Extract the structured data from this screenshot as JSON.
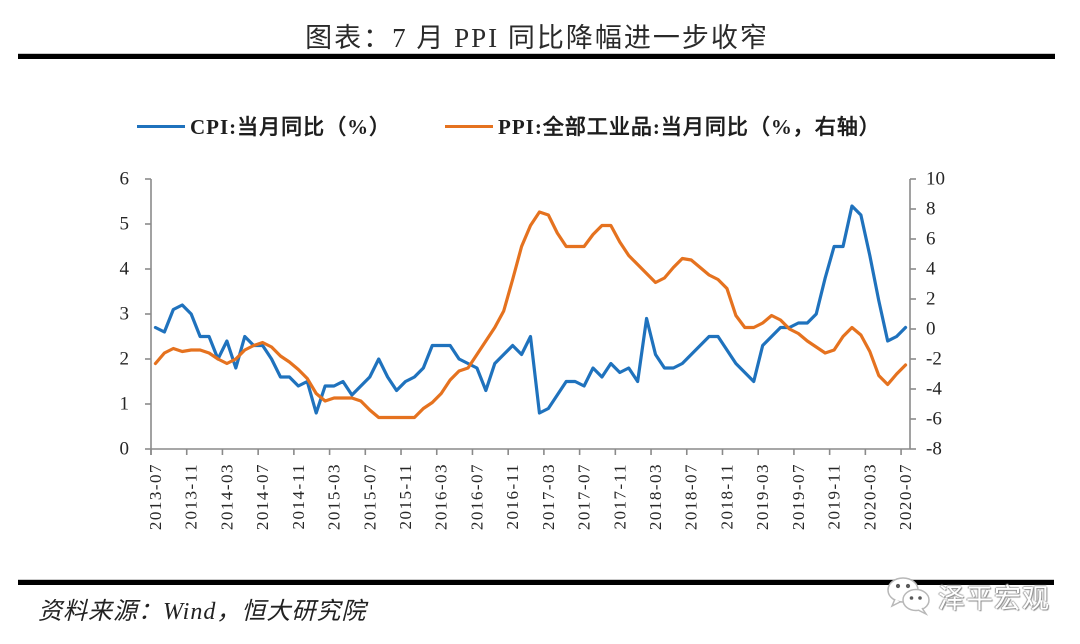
{
  "title": "图表：7 月 PPI 同比降幅进一步收窄",
  "source": "资料来源：Wind，恒大研究院",
  "watermark": {
    "icon": "wechat-icon",
    "text": "泽平宏观"
  },
  "chart_data": {
    "type": "line",
    "title": "图表：7 月 PPI 同比降幅进一步收窄",
    "xlabel": "",
    "ylabel_left": "",
    "ylabel_right": "",
    "legend": "top",
    "grid": false,
    "x": [
      "2013-07",
      "2013-08",
      "2013-09",
      "2013-10",
      "2013-11",
      "2013-12",
      "2014-01",
      "2014-02",
      "2014-03",
      "2014-04",
      "2014-05",
      "2014-06",
      "2014-07",
      "2014-08",
      "2014-09",
      "2014-10",
      "2014-11",
      "2014-12",
      "2015-01",
      "2015-02",
      "2015-03",
      "2015-04",
      "2015-05",
      "2015-06",
      "2015-07",
      "2015-08",
      "2015-09",
      "2015-10",
      "2015-11",
      "2015-12",
      "2016-01",
      "2016-02",
      "2016-03",
      "2016-04",
      "2016-05",
      "2016-06",
      "2016-07",
      "2016-08",
      "2016-09",
      "2016-10",
      "2016-11",
      "2016-12",
      "2017-01",
      "2017-02",
      "2017-03",
      "2017-04",
      "2017-05",
      "2017-06",
      "2017-07",
      "2017-08",
      "2017-09",
      "2017-10",
      "2017-11",
      "2017-12",
      "2018-01",
      "2018-02",
      "2018-03",
      "2018-04",
      "2018-05",
      "2018-06",
      "2018-07",
      "2018-08",
      "2018-09",
      "2018-10",
      "2018-11",
      "2018-12",
      "2019-01",
      "2019-02",
      "2019-03",
      "2019-04",
      "2019-05",
      "2019-06",
      "2019-07",
      "2019-08",
      "2019-09",
      "2019-10",
      "2019-11",
      "2019-12",
      "2020-01",
      "2020-02",
      "2020-03",
      "2020-04",
      "2020-05",
      "2020-06",
      "2020-07"
    ],
    "x_tick_labels": [
      "2013-07",
      "2013-11",
      "2014-03",
      "2014-07",
      "2014-11",
      "2015-03",
      "2015-07",
      "2015-11",
      "2016-03",
      "2016-07",
      "2016-11",
      "2017-03",
      "2017-07",
      "2017-11",
      "2018-03",
      "2018-07",
      "2018-11",
      "2019-03",
      "2019-07",
      "2019-11",
      "2020-03",
      "2020-07"
    ],
    "y_left": {
      "range": [
        0,
        6
      ],
      "ticks": [
        0,
        1,
        2,
        3,
        4,
        5,
        6
      ]
    },
    "y_right": {
      "range": [
        -8,
        10
      ],
      "ticks": [
        -8,
        -6,
        -4,
        -2,
        0,
        2,
        4,
        6,
        8,
        10
      ]
    },
    "series": [
      {
        "name": "CPI:当月同比（%）",
        "axis": "left",
        "color": "#1f72bd",
        "values": [
          2.7,
          2.6,
          3.1,
          3.2,
          3.0,
          2.5,
          2.5,
          2.0,
          2.4,
          1.8,
          2.5,
          2.3,
          2.3,
          2.0,
          1.6,
          1.6,
          1.4,
          1.5,
          0.8,
          1.4,
          1.4,
          1.5,
          1.2,
          1.4,
          1.6,
          2.0,
          1.6,
          1.3,
          1.5,
          1.6,
          1.8,
          2.3,
          2.3,
          2.3,
          2.0,
          1.9,
          1.8,
          1.3,
          1.9,
          2.1,
          2.3,
          2.1,
          2.5,
          0.8,
          0.9,
          1.2,
          1.5,
          1.5,
          1.4,
          1.8,
          1.6,
          1.9,
          1.7,
          1.8,
          1.5,
          2.9,
          2.1,
          1.8,
          1.8,
          1.9,
          2.1,
          2.3,
          2.5,
          2.5,
          2.2,
          1.9,
          1.7,
          1.5,
          2.3,
          2.5,
          2.7,
          2.7,
          2.8,
          2.8,
          3.0,
          3.8,
          4.5,
          4.5,
          5.4,
          5.2,
          4.3,
          3.3,
          2.4,
          2.5,
          2.7
        ]
      },
      {
        "name": "PPI:全部工业品:当月同比（%，右轴）",
        "axis": "right",
        "color": "#e5721f",
        "values": [
          -2.3,
          -1.6,
          -1.3,
          -1.5,
          -1.4,
          -1.4,
          -1.6,
          -2.0,
          -2.3,
          -2.0,
          -1.4,
          -1.1,
          -0.9,
          -1.2,
          -1.8,
          -2.2,
          -2.7,
          -3.3,
          -4.3,
          -4.8,
          -4.6,
          -4.6,
          -4.6,
          -4.8,
          -5.4,
          -5.9,
          -5.9,
          -5.9,
          -5.9,
          -5.9,
          -5.3,
          -4.9,
          -4.3,
          -3.4,
          -2.8,
          -2.6,
          -1.7,
          -0.8,
          0.1,
          1.2,
          3.3,
          5.5,
          6.9,
          7.8,
          7.6,
          6.4,
          5.5,
          5.5,
          5.5,
          6.3,
          6.9,
          6.9,
          5.8,
          4.9,
          4.3,
          3.7,
          3.1,
          3.4,
          4.1,
          4.7,
          4.6,
          4.1,
          3.6,
          3.3,
          2.7,
          0.9,
          0.1,
          0.1,
          0.4,
          0.9,
          0.6,
          0.0,
          -0.3,
          -0.8,
          -1.2,
          -1.6,
          -1.4,
          -0.5,
          0.1,
          -0.4,
          -1.5,
          -3.1,
          -3.7,
          -3.0,
          -2.4
        ]
      }
    ]
  }
}
